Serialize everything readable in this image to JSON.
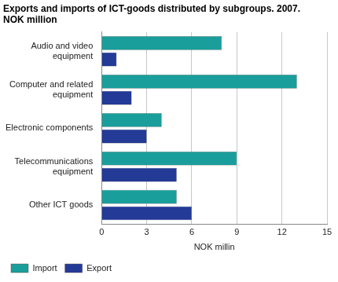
{
  "chart_data": {
    "type": "bar",
    "orientation": "horizontal",
    "title": [
      "Exports and imports of ICT-goods distributed by subgroups. 2007.",
      "NOK million"
    ],
    "x_label": "NOK millin",
    "categories": [
      "Audio and video equipment",
      "Computer and related equipment",
      "Electronic components",
      "Telecommunications equipment",
      "Other ICT goods"
    ],
    "series": [
      {
        "name": "Import",
        "color": "#1a9e9b",
        "values": [
          8,
          13,
          4,
          9,
          5
        ]
      },
      {
        "name": "Export",
        "color": "#233a96",
        "values": [
          1,
          2,
          3,
          5,
          6
        ]
      }
    ],
    "xlim": [
      0,
      15
    ],
    "xticks": [
      0,
      3,
      6,
      9,
      12,
      15
    ],
    "grid": true,
    "legend": "bottom"
  }
}
